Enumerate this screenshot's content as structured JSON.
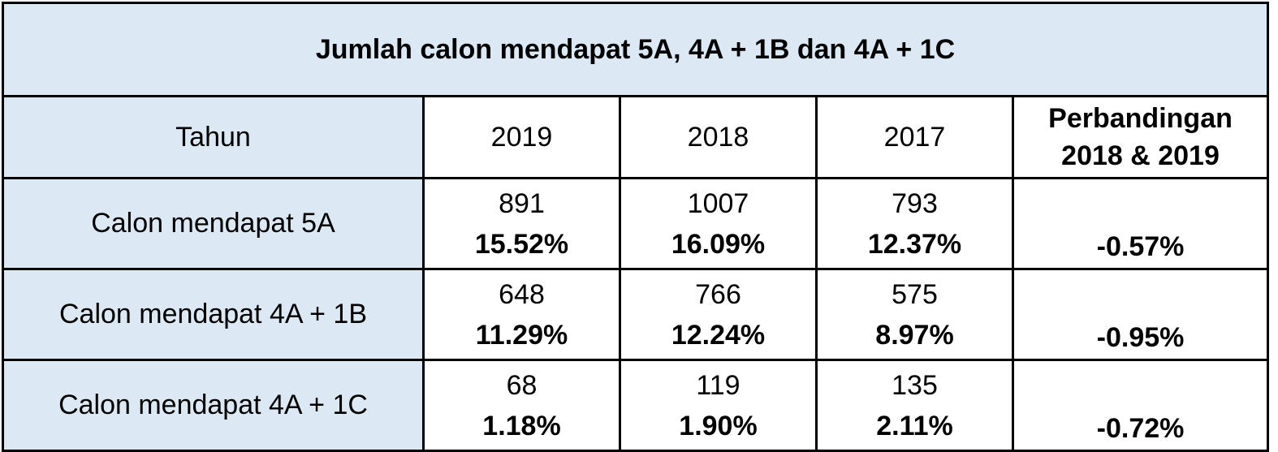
{
  "table": {
    "title": "Jumlah calon mendapat 5A, 4A + 1B dan 4A + 1C",
    "headers": {
      "label": "Tahun",
      "years": [
        "2019",
        "2018",
        "2017"
      ],
      "comparison_line1": "Perbandingan",
      "comparison_line2": "2018 & 2019"
    },
    "rows": [
      {
        "label": "Calon mendapat 5A",
        "values": [
          {
            "count": "891",
            "percent": "15.52%"
          },
          {
            "count": "1007",
            "percent": "16.09%"
          },
          {
            "count": "793",
            "percent": "12.37%"
          }
        ],
        "comparison": "-0.57%"
      },
      {
        "label": "Calon mendapat 4A + 1B",
        "values": [
          {
            "count": "648",
            "percent": "11.29%"
          },
          {
            "count": "766",
            "percent": "12.24%"
          },
          {
            "count": "575",
            "percent": "8.97%"
          }
        ],
        "comparison": "-0.95%"
      },
      {
        "label": "Calon mendapat 4A + 1C",
        "values": [
          {
            "count": "68",
            "percent": "1.18%"
          },
          {
            "count": "119",
            "percent": "1.90%"
          },
          {
            "count": "135",
            "percent": "2.11%"
          }
        ],
        "comparison": "-0.72%"
      }
    ]
  },
  "colors": {
    "header_fill": "#dce9f5",
    "border": "#000000"
  }
}
